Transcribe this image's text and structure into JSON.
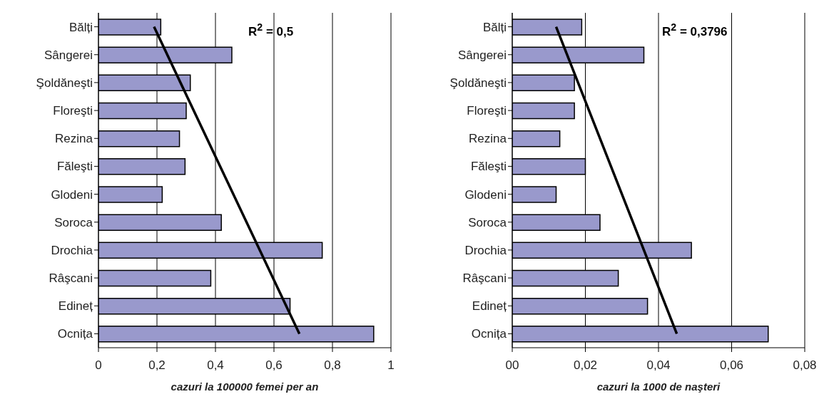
{
  "chart_data": [
    {
      "type": "bar",
      "orientation": "horizontal",
      "xlabel": "cazuri la 100000 femei per an",
      "categories": [
        "Bălți",
        "Sângerei",
        "Şoldăneşti",
        "Floreşti",
        "Rezina",
        "Făleşti",
        "Glodeni",
        "Soroca",
        "Drochia",
        "Râşcani",
        "Edineț",
        "Ocnița"
      ],
      "series": [
        {
          "color": "#9999cc",
          "values": [
            0.213,
            0.456,
            0.314,
            0.3,
            0.277,
            0.296,
            0.218,
            0.42,
            0.765,
            0.384,
            0.655,
            0.941
          ]
        },
        {
          "type": "line",
          "color": "#000000",
          "values": [
            0.19,
            null,
            null,
            null,
            null,
            null,
            null,
            null,
            null,
            null,
            null,
            0.687
          ]
        }
      ],
      "xlim": [
        0,
        1
      ],
      "xticks": [
        0,
        {
          "value": 0.2,
          "label": "0,2"
        },
        {
          "value": 0.4,
          "label": "0,4"
        },
        {
          "value": 0.6,
          "label": "0,6"
        },
        {
          "value": 0.8,
          "label": "0,8"
        },
        1
      ],
      "grid": "x",
      "annotations": [
        "R$^{2}$ = 0,5"
      ]
    },
    {
      "type": "bar",
      "orientation": "horizontal",
      "xlabel": "cazuri la 1000 de naşteri",
      "categories": [
        "Bălți",
        "Sângerei",
        "Şoldăneşti",
        "Floreşti",
        "Rezina",
        "Făleşti",
        "Glodeni",
        "Soroca",
        "Drochia",
        "Râşcani",
        "Edineț",
        "Ocnița"
      ],
      "series": [
        {
          "color": "#9999cc",
          "values": [
            0.019,
            0.036,
            0.017,
            0.017,
            0.013,
            0.02,
            0.012,
            0.024,
            0.049,
            0.029,
            0.037,
            0.07
          ]
        },
        {
          "type": "line",
          "color": "#000000",
          "values": [
            0.012,
            null,
            null,
            null,
            null,
            null,
            null,
            null,
            null,
            null,
            null,
            0.045
          ]
        }
      ],
      "xlim": [
        0,
        0.08
      ],
      "xticks": [
        {
          "value": 0,
          "label": "00"
        },
        {
          "value": 0.02,
          "label": "0,02"
        },
        {
          "value": 0.04,
          "label": "0,04"
        },
        {
          "value": 0.06,
          "label": "0,06"
        },
        {
          "value": 0.08,
          "label": "0,08"
        }
      ],
      "grid": "x",
      "annotations": [
        "R$^{2}$ = 0,3796"
      ]
    }
  ]
}
